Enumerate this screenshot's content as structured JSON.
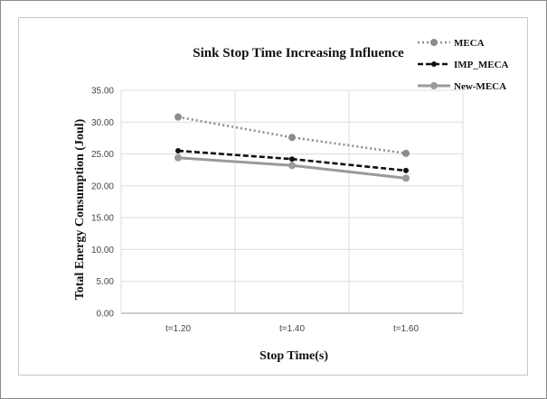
{
  "chart_data": {
    "type": "line",
    "title": "Sink Stop Time Increasing Influence",
    "xlabel": "Stop Time(s)",
    "ylabel": "Total Energy Consumption (Joul)",
    "categories": [
      "t=1.20",
      "t=1.40",
      "t=1.60"
    ],
    "ylim": [
      0,
      35
    ],
    "yticks": [
      "0.00",
      "5.00",
      "10.00",
      "15.00",
      "20.00",
      "25.00",
      "30.00",
      "35.00"
    ],
    "grid": true,
    "legend_position": "top-right",
    "series": [
      {
        "name": "MECA",
        "values": [
          30.8,
          27.6,
          25.1
        ],
        "color": "#8c8c8c",
        "style": "dotted"
      },
      {
        "name": "IMP_MECA",
        "values": [
          25.5,
          24.2,
          22.4
        ],
        "color": "#111111",
        "style": "dashed"
      },
      {
        "name": "New-MECA",
        "values": [
          24.4,
          23.2,
          21.2
        ],
        "color": "#9a9a9a",
        "style": "solid"
      }
    ]
  }
}
